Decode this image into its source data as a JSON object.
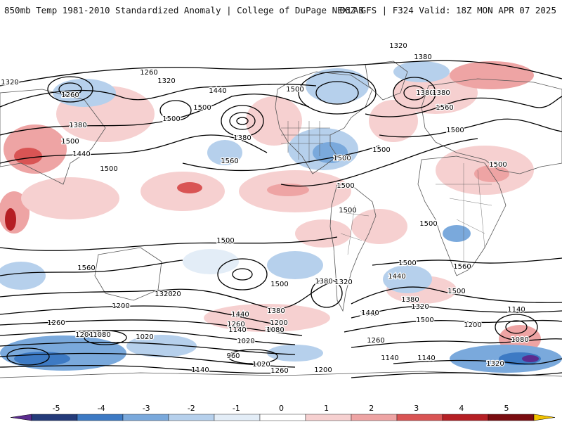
{
  "header": {
    "title_left": "850mb Temp 1981-2010 Standardized Anomaly | College of DuPage NEXLAB",
    "title_right": "06Z GFS | F324 Valid: 18Z MON APR 07 2025"
  },
  "colorbar": {
    "ticks": [
      "-5",
      "-4",
      "-3",
      "-2",
      "-1",
      "0",
      "1",
      "2",
      "3",
      "4",
      "5"
    ],
    "colors": [
      "#5b2c8f",
      "#243b7a",
      "#3d7ac4",
      "#7aa9dc",
      "#b6d0ec",
      "#e3edf7",
      "#ffffff",
      "#f6d0d0",
      "#eea4a4",
      "#d95454",
      "#b51f24",
      "#7a0c10",
      "#f2c200"
    ]
  },
  "contour_labels": [
    "1320",
    "1380",
    "1260",
    "1320",
    "1260",
    "1320",
    "1380",
    "1440",
    "1500",
    "1380",
    "1500",
    "1560",
    "1380",
    "1500",
    "1500",
    "1440",
    "1500",
    "1380",
    "1500",
    "1500",
    "1500",
    "1500",
    "1560",
    "1500",
    "1500",
    "1500",
    "1560",
    "1560",
    "1500",
    "1500",
    "1440",
    "1380",
    "1440",
    "1320",
    "1200",
    "1320",
    "1260",
    "1320",
    "1380",
    "1560",
    "1500",
    "1260",
    "1200",
    "1140",
    "1080",
    "1020",
    "1440",
    "1260",
    "1140",
    "1080",
    "1200",
    "1080",
    "1020",
    "960",
    "1140",
    "1020",
    "1260",
    "1200",
    "1140",
    "1140",
    "1200",
    "1080",
    "1320",
    "1440",
    "1260",
    "1380",
    "1320",
    "1500",
    "1500",
    "1140"
  ],
  "colors": {
    "land_outline": "#555555",
    "contour": "#000000"
  }
}
